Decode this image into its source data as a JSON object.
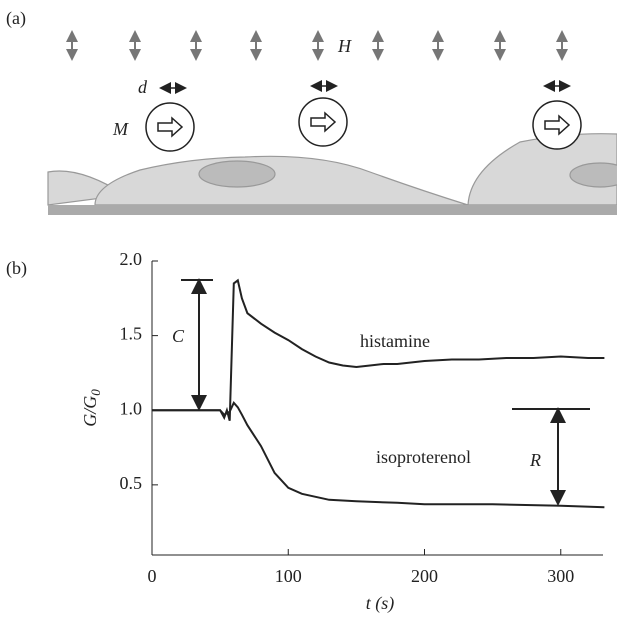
{
  "panel_a": {
    "label": "(a)",
    "d": "d",
    "H": "H",
    "M": "M"
  },
  "chart_data": {
    "type": "line",
    "panel_label": "(b)",
    "xlabel": "t (s)",
    "ylabel": {
      "main": "G/G",
      "sub": "0"
    },
    "xlim": [
      0,
      331
    ],
    "ylim": [
      0.03,
      2.0
    ],
    "xticks": [
      0,
      100,
      200,
      300
    ],
    "yticks": [
      0.5,
      {
        "value": 1.0,
        "label": "1.0"
      },
      1.5,
      {
        "value": 2.0,
        "label": "2.0"
      }
    ],
    "annotations": [
      "C",
      "R"
    ],
    "series": [
      {
        "name": "histamine",
        "color": "#222222",
        "x": [
          0,
          50,
          53,
          55,
          57,
          60,
          63,
          66,
          70,
          80,
          90,
          100,
          110,
          120,
          130,
          140,
          150,
          160,
          170,
          180,
          200,
          220,
          240,
          260,
          280,
          300,
          320,
          332
        ],
        "values": [
          1.0,
          1.0,
          0.95,
          1.0,
          0.93,
          1.85,
          1.87,
          1.75,
          1.65,
          1.58,
          1.52,
          1.47,
          1.41,
          1.36,
          1.32,
          1.3,
          1.29,
          1.3,
          1.31,
          1.31,
          1.33,
          1.34,
          1.34,
          1.35,
          1.35,
          1.36,
          1.35,
          1.35
        ]
      },
      {
        "name": "isoproterenol",
        "color": "#222222",
        "x": [
          0,
          50,
          53,
          57,
          60,
          63,
          66,
          70,
          80,
          90,
          100,
          110,
          120,
          130,
          150,
          180,
          200,
          250,
          300,
          332
        ],
        "values": [
          1.0,
          1.0,
          0.97,
          0.99,
          1.05,
          1.02,
          0.97,
          0.9,
          0.76,
          0.58,
          0.48,
          0.44,
          0.42,
          0.4,
          0.39,
          0.38,
          0.37,
          0.37,
          0.36,
          0.35
        ]
      }
    ]
  }
}
